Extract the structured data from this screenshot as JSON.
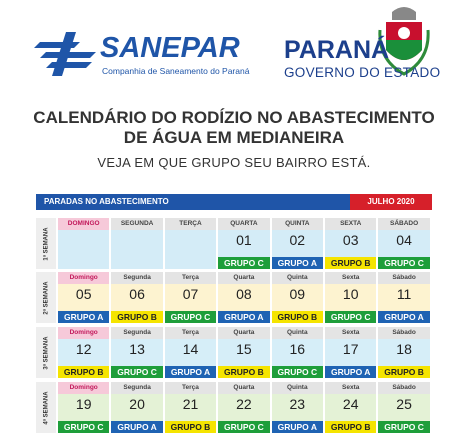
{
  "header": {
    "brand": "SANEPAR",
    "brand_tagline": "Companhia de Saneamento do Paraná",
    "state": "PARANÁ",
    "state_subtitle": "GOVERNO DO ESTADO"
  },
  "title": [
    "CALENDÁRIO DO RODÍZIO NO ABASTECIMENTO",
    "DE ÁGUA EM MEDIANEIRA"
  ],
  "subtitle": "VEJA EM QUE GRUPO SEU BAIRRO ESTÁ.",
  "calendar": {
    "bar_label": "PARADAS NO ABASTECIMENTO",
    "month": "JULHO 2020",
    "weeks": [
      {
        "label": "1ª SEMANA",
        "days": [
          {
            "weekday": "DOMINGO"
          },
          {
            "weekday": "SEGUNDA"
          },
          {
            "weekday": "TERÇA"
          },
          {
            "weekday": "QUARTA",
            "day": "01",
            "group": "GRUPO C"
          },
          {
            "weekday": "QUINTA",
            "day": "02",
            "group": "GRUPO A"
          },
          {
            "weekday": "SEXTA",
            "day": "03",
            "group": "GRUPO B"
          },
          {
            "weekday": "SÁBADO",
            "day": "04",
            "group": "GRUPO C"
          }
        ]
      },
      {
        "label": "2ª SEMANA",
        "days": [
          {
            "weekday": "Domingo",
            "day": "05",
            "group": "GRUPO A"
          },
          {
            "weekday": "Segunda",
            "day": "06",
            "group": "GRUPO B"
          },
          {
            "weekday": "Terça",
            "day": "07",
            "group": "GRUPO C"
          },
          {
            "weekday": "Quarta",
            "day": "08",
            "group": "GRUPO A"
          },
          {
            "weekday": "Quinta",
            "day": "09",
            "group": "GRUPO B"
          },
          {
            "weekday": "Sexta",
            "day": "10",
            "group": "GRUPO C"
          },
          {
            "weekday": "Sábado",
            "day": "11",
            "group": "GRUPO A"
          }
        ]
      },
      {
        "label": "3ª SEMANA",
        "days": [
          {
            "weekday": "Domingo",
            "day": "12",
            "group": "GRUPO B"
          },
          {
            "weekday": "Segunda",
            "day": "13",
            "group": "GRUPO C"
          },
          {
            "weekday": "Terça",
            "day": "14",
            "group": "GRUPO A"
          },
          {
            "weekday": "Quarta",
            "day": "15",
            "group": "GRUPO B"
          },
          {
            "weekday": "Quinta",
            "day": "16",
            "group": "GRUPO C"
          },
          {
            "weekday": "Sexta",
            "day": "17",
            "group": "GRUPO A"
          },
          {
            "weekday": "Sábado",
            "day": "18",
            "group": "GRUPO B"
          }
        ]
      },
      {
        "label": "4ª SEMANA",
        "days": [
          {
            "weekday": "Domingo",
            "day": "19",
            "group": "GRUPO C"
          },
          {
            "weekday": "Segunda",
            "day": "20",
            "group": "GRUPO A"
          },
          {
            "weekday": "Terça",
            "day": "21",
            "group": "GRUPO B"
          },
          {
            "weekday": "Quarta",
            "day": "22",
            "group": "GRUPO C"
          },
          {
            "weekday": "Quinta",
            "day": "23",
            "group": "GRUPO A"
          },
          {
            "weekday": "Sexta",
            "day": "24",
            "group": "GRUPO B"
          },
          {
            "weekday": "Sábado",
            "day": "25",
            "group": "GRUPO C"
          }
        ]
      }
    ]
  }
}
